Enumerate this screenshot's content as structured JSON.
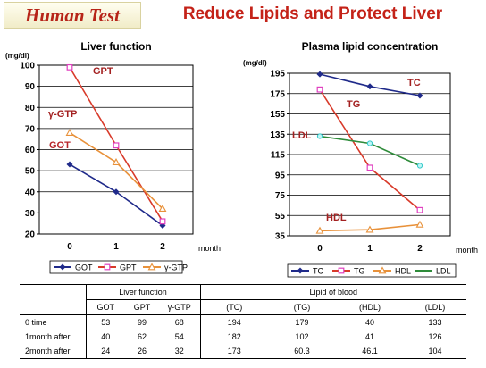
{
  "header": {
    "brand": "Human Test",
    "title": "Reduce Lipids and Protect Liver"
  },
  "chart_data": [
    {
      "type": "line",
      "title": "Liver function",
      "ylabel": "(mg/dl)",
      "xlabel": "month",
      "categories": [
        "0",
        "1",
        "2"
      ],
      "ylim": [
        20,
        100
      ],
      "yticks": [
        20,
        30,
        40,
        50,
        60,
        70,
        80,
        90,
        100
      ],
      "series": [
        {
          "name": "GOT",
          "values": [
            53,
            40,
            24
          ],
          "color": "#1f2a8a",
          "marker": "diamond"
        },
        {
          "name": "GPT",
          "values": [
            99,
            62,
            26
          ],
          "color": "#d83a2a",
          "marker": "square"
        },
        {
          "name": "γ-GTP",
          "values": [
            68,
            54,
            32
          ],
          "color": "#e8913a",
          "marker": "triangle"
        }
      ],
      "annotations": [
        "GPT",
        "γ-GTP",
        "GOT"
      ],
      "legend": [
        "GOT",
        "GPT",
        "γ-GTP"
      ],
      "legend_placement": "bottom"
    },
    {
      "type": "line",
      "title": "Plasma lipid concentration",
      "ylabel": "(mg/dl)",
      "xlabel": "month",
      "categories": [
        "0",
        "1",
        "2"
      ],
      "ylim": [
        35,
        195
      ],
      "yticks": [
        35,
        55,
        75,
        95,
        115,
        135,
        155,
        175,
        195
      ],
      "series": [
        {
          "name": "TC",
          "values": [
            194,
            182,
            173
          ],
          "color": "#1f2a8a",
          "marker": "diamond"
        },
        {
          "name": "TG",
          "values": [
            179,
            102,
            60.3
          ],
          "color": "#d83a2a",
          "marker": "square"
        },
        {
          "name": "HDL",
          "values": [
            40,
            41,
            46.1
          ],
          "color": "#e8913a",
          "marker": "triangle"
        },
        {
          "name": "LDL",
          "values": [
            133,
            126,
            104
          ],
          "color": "#2e8b3a",
          "marker": "circle"
        }
      ],
      "annotations": [
        "TC",
        "TG",
        "LDL",
        "HDL"
      ],
      "legend": [
        "TC",
        "TG",
        "HDL",
        "LDL"
      ],
      "legend_placement": "bottom"
    }
  ],
  "table": {
    "group_liver": "Liver function",
    "group_blood": "Lipid of blood",
    "sub_headers": [
      "GOT",
      "GPT",
      "γ-GTP",
      "(TC)",
      "(TG)",
      "(HDL)",
      "(LDL)"
    ],
    "rows": [
      {
        "label": "0 time",
        "values": [
          "53",
          "99",
          "68",
          "194",
          "179",
          "40",
          "133"
        ]
      },
      {
        "label": "1month after",
        "values": [
          "40",
          "62",
          "54",
          "182",
          "102",
          "41",
          "126"
        ]
      },
      {
        "label": "2month after",
        "values": [
          "24",
          "26",
          "32",
          "173",
          "60.3",
          "46.1",
          "104"
        ]
      }
    ]
  }
}
